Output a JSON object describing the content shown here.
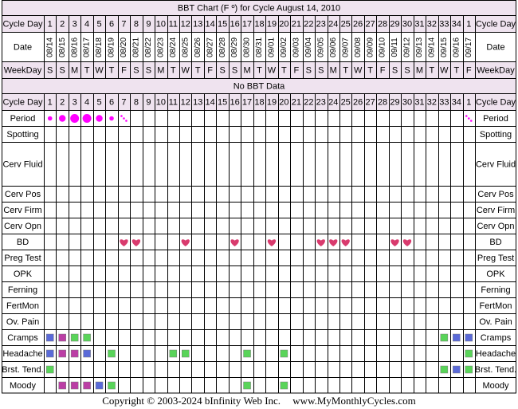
{
  "title": "BBT Chart (F º) for Cycle August 14, 2010",
  "no_data_text": "No BBT Data",
  "footer": {
    "copyright": "Copyright © 2003-2024 bInfinity Web Inc.",
    "site": "www.MyMonthlyCycles.com"
  },
  "colors": {
    "header_bg": "#efe3ef",
    "grid": "#000000",
    "period": "#ff00ff",
    "heart": "#d93b6e",
    "level_1": "#59d459",
    "level_2": "#bb3ea5",
    "level_3": "#5a6ad8"
  },
  "chart_data": {
    "type": "table",
    "row_labels": {
      "cycle_day": "Cycle Day",
      "date": "Date",
      "weekday": "WeekDay"
    },
    "cycle_days": [
      "1",
      "2",
      "3",
      "4",
      "5",
      "6",
      "7",
      "8",
      "9",
      "10",
      "11",
      "12",
      "13",
      "14",
      "15",
      "16",
      "17",
      "18",
      "19",
      "20",
      "21",
      "22",
      "23",
      "24",
      "25",
      "26",
      "27",
      "28",
      "29",
      "30",
      "31",
      "32",
      "33",
      "34",
      "1"
    ],
    "dates": [
      "08/14",
      "08/15",
      "08/16",
      "08/17",
      "08/18",
      "08/19",
      "08/20",
      "08/21",
      "08/22",
      "08/23",
      "08/24",
      "08/25",
      "08/26",
      "08/27",
      "08/28",
      "08/29",
      "08/30",
      "08/31",
      "09/01",
      "09/02",
      "09/03",
      "09/04",
      "09/05",
      "09/06",
      "09/07",
      "09/08",
      "09/09",
      "09/10",
      "09/11",
      "09/12",
      "09/13",
      "09/14",
      "09/15",
      "09/16",
      "09/17"
    ],
    "weekdays": [
      "S",
      "S",
      "M",
      "T",
      "W",
      "T",
      "F",
      "S",
      "S",
      "M",
      "T",
      "W",
      "T",
      "F",
      "S",
      "S",
      "M",
      "T",
      "W",
      "T",
      "F",
      "S",
      "S",
      "M",
      "T",
      "W",
      "T",
      "F",
      "S",
      "S",
      "M",
      "T",
      "W",
      "T",
      "F"
    ],
    "symptom_rows": [
      {
        "label": "Period",
        "kind": "period",
        "cells": [
          1,
          2,
          3,
          3,
          2,
          1,
          "s",
          0,
          0,
          0,
          0,
          0,
          0,
          0,
          0,
          0,
          0,
          0,
          0,
          0,
          0,
          0,
          0,
          0,
          0,
          0,
          0,
          0,
          0,
          0,
          0,
          0,
          0,
          0,
          "s"
        ]
      },
      {
        "label": "Spotting",
        "kind": "blank"
      },
      {
        "label": "Cerv Fluid",
        "kind": "blank",
        "tall": true
      },
      {
        "label": "Cerv Pos",
        "kind": "blank"
      },
      {
        "label": "Cerv Firm",
        "kind": "blank"
      },
      {
        "label": "Cerv Opn",
        "kind": "blank"
      },
      {
        "label": "BD",
        "kind": "heart",
        "cells": [
          0,
          0,
          0,
          0,
          0,
          0,
          1,
          1,
          0,
          0,
          0,
          1,
          0,
          0,
          0,
          1,
          0,
          0,
          1,
          0,
          0,
          0,
          1,
          1,
          1,
          0,
          0,
          0,
          1,
          1,
          0,
          0,
          0,
          0,
          0
        ]
      },
      {
        "label": "Preg Test",
        "kind": "blank"
      },
      {
        "label": "OPK",
        "kind": "blank"
      },
      {
        "label": "Ferning",
        "kind": "blank"
      },
      {
        "label": "FertMon",
        "kind": "blank"
      },
      {
        "label": "Ov. Pain",
        "kind": "blank"
      },
      {
        "label": "Cramps",
        "kind": "level",
        "cells": [
          3,
          2,
          1,
          1,
          0,
          0,
          0,
          0,
          0,
          0,
          0,
          0,
          0,
          0,
          0,
          0,
          0,
          0,
          0,
          0,
          0,
          0,
          0,
          0,
          0,
          0,
          0,
          0,
          0,
          0,
          0,
          0,
          1,
          3,
          3
        ]
      },
      {
        "label": "Headache",
        "kind": "level",
        "cells": [
          3,
          2,
          2,
          3,
          0,
          1,
          0,
          0,
          0,
          0,
          1,
          1,
          0,
          0,
          0,
          0,
          1,
          0,
          0,
          1,
          0,
          0,
          0,
          0,
          0,
          0,
          0,
          0,
          0,
          0,
          0,
          0,
          0,
          0,
          1
        ]
      },
      {
        "label": "Brst. Tend.",
        "kind": "level",
        "cells": [
          1,
          0,
          0,
          0,
          0,
          0,
          0,
          0,
          0,
          0,
          0,
          0,
          0,
          0,
          0,
          0,
          0,
          0,
          0,
          0,
          0,
          0,
          0,
          0,
          0,
          0,
          0,
          0,
          0,
          0,
          0,
          0,
          1,
          3,
          1
        ]
      },
      {
        "label": "Moody",
        "kind": "level",
        "cells": [
          0,
          2,
          2,
          2,
          3,
          1,
          0,
          0,
          0,
          0,
          0,
          0,
          0,
          0,
          0,
          0,
          1,
          0,
          0,
          1,
          0,
          0,
          0,
          0,
          0,
          0,
          0,
          0,
          0,
          0,
          0,
          0,
          0,
          0,
          0
        ]
      }
    ]
  }
}
